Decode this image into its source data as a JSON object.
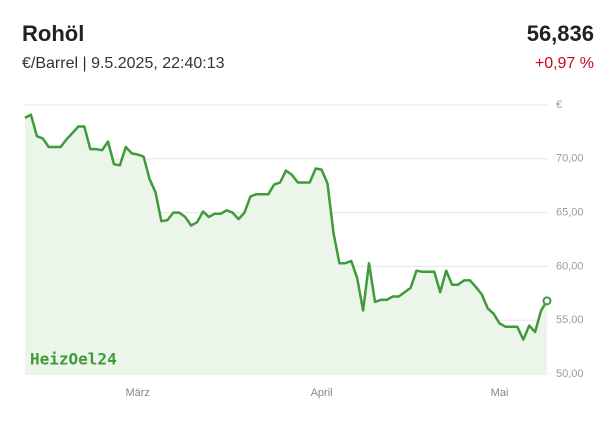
{
  "header": {
    "title": "Rohöl",
    "subtitle": "€/Barrel | 9.5.2025, 22:40:13",
    "price": "56,836",
    "change": "+0,97 %",
    "change_color": "#d0021b"
  },
  "chart_data": {
    "type": "area-line",
    "watermark": "HeizOel24",
    "color": "#3f9a3a",
    "fill": "#ebf5e9",
    "categories": [
      null,
      null,
      null,
      null,
      null,
      null,
      null,
      null,
      null,
      null,
      null,
      null,
      null,
      null,
      null,
      null,
      null,
      null,
      null,
      "März",
      null,
      null,
      null,
      null,
      null,
      null,
      null,
      null,
      null,
      null,
      null,
      null,
      null,
      null,
      null,
      null,
      null,
      null,
      null,
      null,
      null,
      null,
      null,
      null,
      null,
      null,
      null,
      null,
      null,
      null,
      "April",
      null,
      null,
      null,
      null,
      null,
      null,
      null,
      null,
      null,
      null,
      null,
      null,
      null,
      null,
      null,
      null,
      null,
      null,
      null,
      null,
      null,
      null,
      null,
      null,
      null,
      null,
      null,
      null,
      null,
      "Mai",
      null,
      null,
      null,
      null,
      null,
      null,
      null,
      null
    ],
    "values": [
      73.8,
      74.1,
      72.1,
      71.9,
      71.1,
      71.1,
      71.1,
      71.8,
      72.4,
      73.0,
      73.0,
      70.9,
      70.9,
      70.8,
      71.6,
      69.5,
      69.4,
      71.1,
      70.5,
      70.4,
      70.2,
      68.1,
      66.9,
      64.2,
      64.3,
      65.0,
      65.0,
      64.6,
      63.8,
      64.1,
      65.1,
      64.6,
      64.9,
      64.9,
      65.2,
      65.0,
      64.4,
      65.0,
      66.5,
      66.7,
      66.7,
      66.7,
      67.6,
      67.8,
      68.9,
      68.5,
      67.8,
      67.8,
      67.8,
      69.1,
      69.0,
      67.7,
      63.1,
      60.3,
      60.3,
      60.5,
      58.9,
      55.9,
      60.3,
      56.7,
      56.9,
      56.9,
      57.2,
      57.2,
      57.6,
      58.0,
      59.6,
      59.5,
      59.5,
      59.5,
      57.6,
      59.6,
      58.3,
      58.3,
      58.7,
      58.7,
      58.1,
      57.4,
      56.1,
      55.6,
      54.7,
      54.4,
      54.4,
      54.4,
      53.2,
      54.5,
      53.9,
      55.9,
      56.8
    ],
    "ylim": [
      50,
      75
    ],
    "yticks": [
      {
        "value": 50,
        "label": "50,00"
      },
      {
        "value": 55,
        "label": "55,00"
      },
      {
        "value": 60,
        "label": "60,00"
      },
      {
        "value": 65,
        "label": "65,00"
      },
      {
        "value": 70,
        "label": "70,00"
      },
      {
        "value": 75,
        "label": "€"
      }
    ],
    "grid": true
  }
}
